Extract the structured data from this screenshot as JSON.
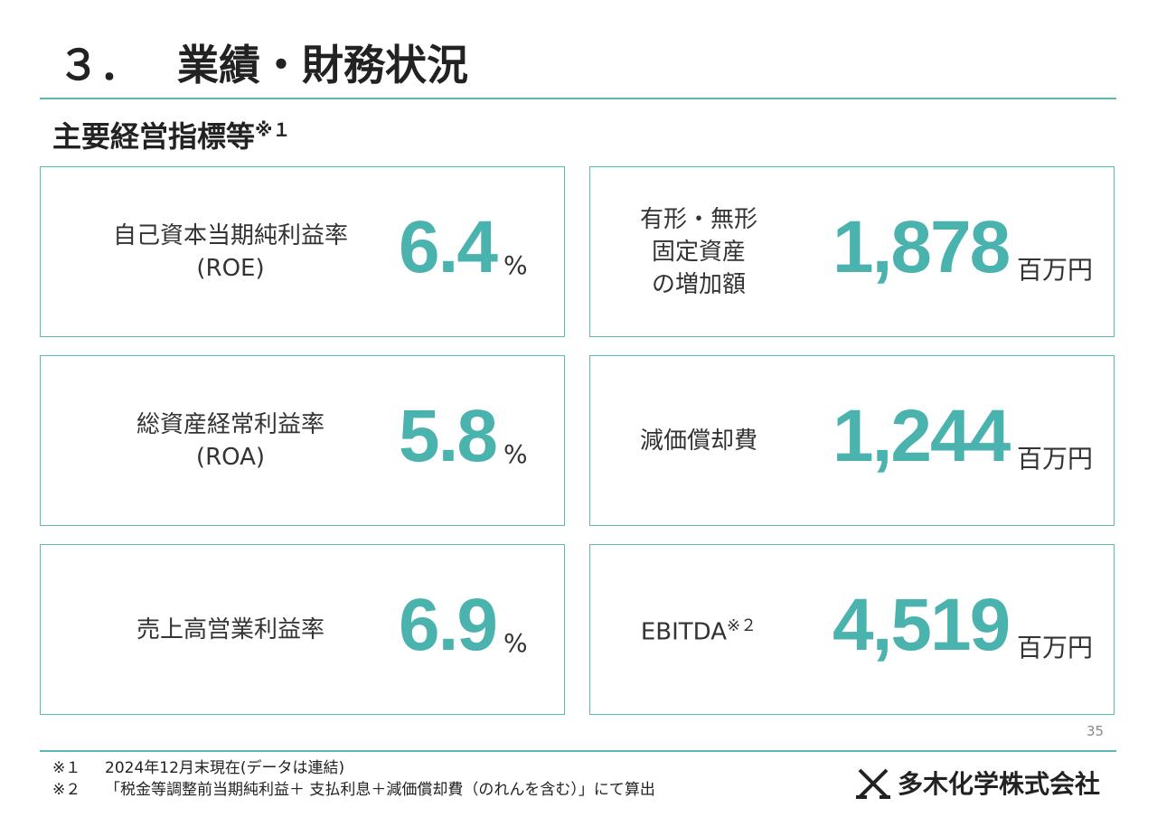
{
  "header": {
    "number": "３．",
    "title": "業績・財務状況"
  },
  "subtitle": {
    "text": "主要経営指標等",
    "note": "※１"
  },
  "cards": [
    {
      "label": [
        "自己資本当期純利益率",
        "(ROE)"
      ],
      "value": "6.4",
      "unit": "%"
    },
    {
      "label": [
        "有形・無形",
        "固定資産",
        "の増加額"
      ],
      "value": "1,878",
      "unit": "百万円"
    },
    {
      "label": [
        "総資産経常利益率",
        "(ROA)"
      ],
      "value": "5.8",
      "unit": "%"
    },
    {
      "label": [
        "減価償却費"
      ],
      "value": "1,244",
      "unit": "百万円"
    },
    {
      "label": [
        "売上高営業利益率"
      ],
      "value": "6.9",
      "unit": "%"
    },
    {
      "label": [
        "EBITDA"
      ],
      "note": "※２",
      "value": "4,519",
      "unit": "百万円"
    }
  ],
  "page_number": "35",
  "footnotes": [
    {
      "mark": "※１",
      "text": "2024年12月末現在(データは連結)"
    },
    {
      "mark": "※２",
      "text": "「税金等調整前当期純利益＋ 支払利息＋減価償却費（のれんを含む）」にて算出"
    }
  ],
  "company": "多木化学株式会社"
}
